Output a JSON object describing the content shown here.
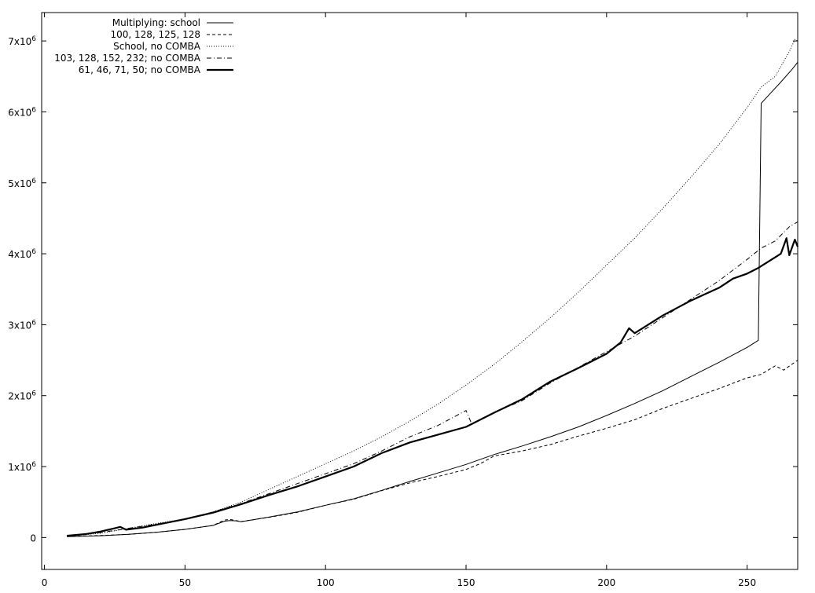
{
  "chart_data": {
    "type": "line",
    "title": "",
    "xlabel": "",
    "ylabel": "",
    "xlim": [
      -1,
      268
    ],
    "ylim": [
      -450000,
      7400000
    ],
    "x_ticks": [
      0,
      50,
      100,
      150,
      200,
      250
    ],
    "y_ticks": [
      {
        "value": 0,
        "base": "0",
        "exp": ""
      },
      {
        "value": 1000000,
        "base": "1x10",
        "exp": "6"
      },
      {
        "value": 2000000,
        "base": "2x10",
        "exp": "6"
      },
      {
        "value": 3000000,
        "base": "3x10",
        "exp": "6"
      },
      {
        "value": 4000000,
        "base": "4x10",
        "exp": "6"
      },
      {
        "value": 5000000,
        "base": "5x10",
        "exp": "6"
      },
      {
        "value": 6000000,
        "base": "6x10",
        "exp": "6"
      },
      {
        "value": 7000000,
        "base": "7x10",
        "exp": "6"
      }
    ],
    "legend_position": "top-left",
    "series": [
      {
        "name": "Multiplying: school",
        "style": "solid",
        "width": 1,
        "points": [
          [
            8,
            12000
          ],
          [
            20,
            25000
          ],
          [
            30,
            45000
          ],
          [
            40,
            75000
          ],
          [
            50,
            115000
          ],
          [
            60,
            170000
          ],
          [
            64,
            230000
          ],
          [
            66,
            240000
          ],
          [
            68,
            235000
          ],
          [
            70,
            222000
          ],
          [
            80,
            290000
          ],
          [
            90,
            360000
          ],
          [
            100,
            455000
          ],
          [
            110,
            545000
          ],
          [
            120,
            665000
          ],
          [
            130,
            790000
          ],
          [
            140,
            910000
          ],
          [
            150,
            1030000
          ],
          [
            160,
            1170000
          ],
          [
            170,
            1290000
          ],
          [
            180,
            1420000
          ],
          [
            190,
            1560000
          ],
          [
            200,
            1720000
          ],
          [
            210,
            1890000
          ],
          [
            220,
            2070000
          ],
          [
            230,
            2270000
          ],
          [
            240,
            2470000
          ],
          [
            250,
            2680000
          ],
          [
            254,
            2780000
          ],
          [
            255,
            6120000
          ],
          [
            258,
            6250000
          ],
          [
            262,
            6420000
          ],
          [
            266,
            6600000
          ],
          [
            268,
            6700000
          ]
        ]
      },
      {
        "name": "100, 128, 125, 128",
        "style": "dashed",
        "width": 1,
        "points": [
          [
            8,
            15000
          ],
          [
            20,
            28000
          ],
          [
            30,
            45000
          ],
          [
            40,
            75000
          ],
          [
            50,
            115000
          ],
          [
            60,
            170000
          ],
          [
            64,
            245000
          ],
          [
            66,
            255000
          ],
          [
            68,
            240000
          ],
          [
            70,
            225000
          ],
          [
            80,
            285000
          ],
          [
            90,
            355000
          ],
          [
            100,
            455000
          ],
          [
            110,
            540000
          ],
          [
            120,
            660000
          ],
          [
            130,
            770000
          ],
          [
            140,
            860000
          ],
          [
            150,
            960000
          ],
          [
            155,
            1040000
          ],
          [
            160,
            1150000
          ],
          [
            170,
            1220000
          ],
          [
            180,
            1310000
          ],
          [
            190,
            1430000
          ],
          [
            200,
            1540000
          ],
          [
            210,
            1660000
          ],
          [
            220,
            1820000
          ],
          [
            230,
            1960000
          ],
          [
            240,
            2100000
          ],
          [
            250,
            2250000
          ],
          [
            255,
            2300000
          ],
          [
            260,
            2420000
          ],
          [
            263,
            2360000
          ],
          [
            268,
            2500000
          ]
        ]
      },
      {
        "name": "School, no COMBA",
        "style": "dotted",
        "width": 1,
        "points": [
          [
            8,
            18000
          ],
          [
            20,
            60000
          ],
          [
            30,
            130000
          ],
          [
            40,
            200000
          ],
          [
            50,
            260000
          ],
          [
            60,
            360000
          ],
          [
            70,
            500000
          ],
          [
            80,
            680000
          ],
          [
            90,
            860000
          ],
          [
            100,
            1040000
          ],
          [
            110,
            1220000
          ],
          [
            120,
            1420000
          ],
          [
            130,
            1640000
          ],
          [
            140,
            1880000
          ],
          [
            150,
            2150000
          ],
          [
            160,
            2440000
          ],
          [
            170,
            2760000
          ],
          [
            180,
            3100000
          ],
          [
            190,
            3460000
          ],
          [
            200,
            3840000
          ],
          [
            210,
            4220000
          ],
          [
            220,
            4640000
          ],
          [
            230,
            5080000
          ],
          [
            240,
            5540000
          ],
          [
            250,
            6060000
          ],
          [
            255,
            6350000
          ],
          [
            260,
            6500000
          ],
          [
            265,
            6850000
          ],
          [
            267,
            7020000
          ],
          [
            268,
            7000000
          ]
        ]
      },
      {
        "name": "103, 128, 152, 232; no COMBA",
        "style": "dashdot",
        "width": 1,
        "points": [
          [
            8,
            18000
          ],
          [
            20,
            70000
          ],
          [
            30,
            130000
          ],
          [
            40,
            190000
          ],
          [
            50,
            260000
          ],
          [
            60,
            360000
          ],
          [
            70,
            480000
          ],
          [
            80,
            620000
          ],
          [
            90,
            760000
          ],
          [
            100,
            900000
          ],
          [
            110,
            1040000
          ],
          [
            120,
            1220000
          ],
          [
            130,
            1420000
          ],
          [
            140,
            1580000
          ],
          [
            150,
            1790000
          ],
          [
            152,
            1600000
          ],
          [
            160,
            1760000
          ],
          [
            170,
            1930000
          ],
          [
            180,
            2180000
          ],
          [
            190,
            2400000
          ],
          [
            200,
            2620000
          ],
          [
            210,
            2840000
          ],
          [
            220,
            3100000
          ],
          [
            230,
            3360000
          ],
          [
            240,
            3620000
          ],
          [
            250,
            3920000
          ],
          [
            255,
            4080000
          ],
          [
            260,
            4180000
          ],
          [
            265,
            4380000
          ],
          [
            268,
            4450000
          ]
        ]
      },
      {
        "name": "61, 46, 71, 50; no COMBA",
        "style": "solid",
        "width": 2.2,
        "points": [
          [
            8,
            25000
          ],
          [
            15,
            50000
          ],
          [
            20,
            85000
          ],
          [
            25,
            130000
          ],
          [
            27,
            150000
          ],
          [
            29,
            110000
          ],
          [
            35,
            140000
          ],
          [
            40,
            180000
          ],
          [
            50,
            260000
          ],
          [
            60,
            350000
          ],
          [
            70,
            470000
          ],
          [
            80,
            600000
          ],
          [
            90,
            720000
          ],
          [
            100,
            860000
          ],
          [
            110,
            1000000
          ],
          [
            120,
            1190000
          ],
          [
            130,
            1340000
          ],
          [
            140,
            1450000
          ],
          [
            150,
            1560000
          ],
          [
            160,
            1760000
          ],
          [
            170,
            1950000
          ],
          [
            180,
            2200000
          ],
          [
            190,
            2390000
          ],
          [
            200,
            2590000
          ],
          [
            205,
            2750000
          ],
          [
            208,
            2950000
          ],
          [
            210,
            2880000
          ],
          [
            220,
            3130000
          ],
          [
            230,
            3340000
          ],
          [
            240,
            3520000
          ],
          [
            245,
            3650000
          ],
          [
            250,
            3720000
          ],
          [
            254,
            3800000
          ],
          [
            258,
            3900000
          ],
          [
            262,
            4000000
          ],
          [
            264,
            4220000
          ],
          [
            265,
            3980000
          ],
          [
            267,
            4200000
          ],
          [
            268,
            4100000
          ]
        ]
      }
    ]
  }
}
